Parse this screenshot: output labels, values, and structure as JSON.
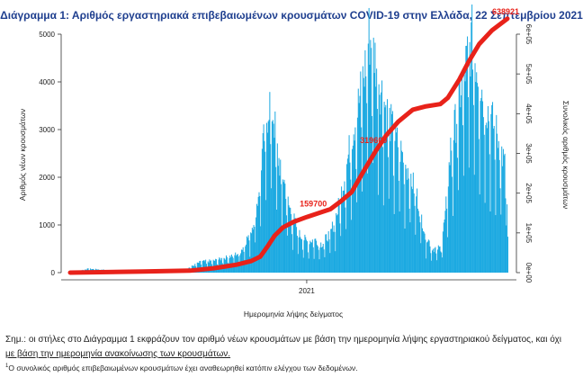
{
  "chart_data": {
    "type": "bar",
    "title": "Διάγραμμα 1: Αριθμός εργαστηριακά επιβεβαιωμένων κρουσμάτων COVID-19 στην Ελλάδα, 22 Σεπτεμβρίου 2021",
    "xlabel": "Ημερομηνία λήψης δείγματος",
    "ylabel": "Αριθμός νέων κρουσμάτων",
    "y2label": "Συνολικός αριθμός κρουσμάτων",
    "x_tick_labels": [
      "2021"
    ],
    "ylim": [
      0,
      5000
    ],
    "yticks": [
      0,
      1000,
      2000,
      3000,
      4000,
      5000
    ],
    "y2lim": [
      0,
      600000
    ],
    "y2ticks": [
      "0e+00",
      "1e+05",
      "2e+05",
      "3e+05",
      "4e+05",
      "5e+05",
      "6e+05"
    ],
    "y2tick_values": [
      0,
      100000,
      200000,
      300000,
      400000,
      500000,
      600000
    ],
    "x_start": "2020-02-26",
    "x_end": "2021-09-21",
    "x_tick_dates": [
      "2021-01-01"
    ],
    "grid": false,
    "bar_color": "#1ba9e1",
    "line_color": "#e8221a",
    "series": [
      {
        "kind": "bars",
        "points": [
          [
            "2020-02-26",
            0
          ],
          [
            "2020-03-20",
            80
          ],
          [
            "2020-04-10",
            60
          ],
          [
            "2020-05-01",
            15
          ],
          [
            "2020-06-01",
            15
          ],
          [
            "2020-07-01",
            25
          ],
          [
            "2020-07-25",
            60
          ],
          [
            "2020-08-15",
            230
          ],
          [
            "2020-09-01",
            250
          ],
          [
            "2020-09-20",
            330
          ],
          [
            "2020-10-05",
            420
          ],
          [
            "2020-10-20",
            900
          ],
          [
            "2020-10-28",
            1500
          ],
          [
            "2020-11-03",
            2500
          ],
          [
            "2020-11-08",
            3100
          ],
          [
            "2020-11-12",
            3600
          ],
          [
            "2020-11-18",
            3300
          ],
          [
            "2020-11-24",
            2400
          ],
          [
            "2020-12-01",
            2000
          ],
          [
            "2020-12-08",
            1400
          ],
          [
            "2020-12-15",
            1100
          ],
          [
            "2020-12-22",
            800
          ],
          [
            "2021-01-01",
            650
          ],
          [
            "2021-01-10",
            700
          ],
          [
            "2021-01-20",
            600
          ],
          [
            "2021-02-01",
            850
          ],
          [
            "2021-02-10",
            1300
          ],
          [
            "2021-02-20",
            2100
          ],
          [
            "2021-03-01",
            2900
          ],
          [
            "2021-03-10",
            3600
          ],
          [
            "2021-03-18",
            4300
          ],
          [
            "2021-03-23",
            5000
          ],
          [
            "2021-03-30",
            4600
          ],
          [
            "2021-04-07",
            3900
          ],
          [
            "2021-04-15",
            3400
          ],
          [
            "2021-04-25",
            2900
          ],
          [
            "2021-05-05",
            2500
          ],
          [
            "2021-05-15",
            2100
          ],
          [
            "2021-05-25",
            1600
          ],
          [
            "2021-06-05",
            800
          ],
          [
            "2021-06-15",
            500
          ],
          [
            "2021-06-25",
            520
          ],
          [
            "2021-07-01",
            1200
          ],
          [
            "2021-07-08",
            2600
          ],
          [
            "2021-07-15",
            3200
          ],
          [
            "2021-07-22",
            3900
          ],
          [
            "2021-07-30",
            4500
          ],
          [
            "2021-08-05",
            4900
          ],
          [
            "2021-08-12",
            4300
          ],
          [
            "2021-08-20",
            3700
          ],
          [
            "2021-08-28",
            3300
          ],
          [
            "2021-09-05",
            3000
          ],
          [
            "2021-09-12",
            2600
          ],
          [
            "2021-09-19",
            2100
          ],
          [
            "2021-09-21",
            700
          ]
        ]
      },
      {
        "kind": "line",
        "name": "Συνολικός αριθμός κρουσμάτων",
        "points": [
          [
            "2020-02-26",
            0
          ],
          [
            "2020-06-01",
            3000
          ],
          [
            "2020-08-01",
            5000
          ],
          [
            "2020-09-01",
            11000
          ],
          [
            "2020-10-01",
            20000
          ],
          [
            "2020-10-20",
            29000
          ],
          [
            "2020-11-01",
            40000
          ],
          [
            "2020-11-10",
            64000
          ],
          [
            "2020-11-20",
            93000
          ],
          [
            "2020-12-01",
            114000
          ],
          [
            "2020-12-15",
            128000
          ],
          [
            "2021-01-01",
            140000
          ],
          [
            "2021-01-20",
            152000
          ],
          [
            "2021-02-01",
            159700
          ],
          [
            "2021-02-15",
            180000
          ],
          [
            "2021-03-01",
            203000
          ],
          [
            "2021-03-15",
            250000
          ],
          [
            "2021-04-01",
            305000
          ],
          [
            "2021-04-15",
            345000
          ],
          [
            "2021-05-01",
            380000
          ],
          [
            "2021-05-20",
            410000
          ],
          [
            "2021-06-05",
            418000
          ],
          [
            "2021-06-25",
            424000
          ],
          [
            "2021-07-05",
            440000
          ],
          [
            "2021-07-20",
            486000
          ],
          [
            "2021-08-01",
            530000
          ],
          [
            "2021-08-15",
            575000
          ],
          [
            "2021-09-01",
            610000
          ],
          [
            "2021-09-21",
            638921
          ]
        ]
      }
    ],
    "annotations": [
      {
        "text": "159700",
        "date": "2021-02-01",
        "value": 159700,
        "axis": "y2"
      },
      {
        "text": "319600",
        "date": "2021-04-21",
        "value": 319600,
        "axis": "y2"
      },
      {
        "text": "638921",
        "date": "2021-09-21",
        "value": 638921,
        "axis": "y2"
      }
    ]
  },
  "notes": {
    "note1_line1": "Σημ.: οι στήλες στο Διάγραμμα 1 εκφράζουν τον αριθμό νέων κρουσμάτων με βάση την ημερομηνία λήψης εργαστηριακού δείγματος, και όχι",
    "note1_line2": "με βάση την ημερομηνία ανακοίνωσης των κρουσμάτων.",
    "footnote_marker": "1",
    "footnote_text": "Ο συνολικός αριθμός επιβεβαιωμένων κρουσμάτων έχει αναθεωρηθεί κατόπιν ελέγχου των δεδομένων."
  }
}
